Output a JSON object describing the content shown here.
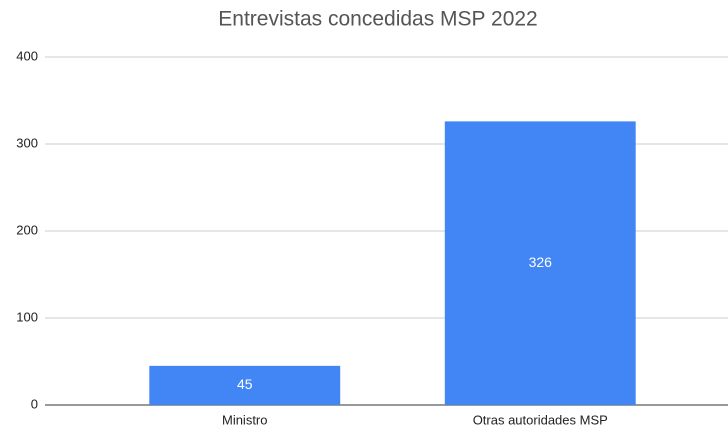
{
  "chart_data": {
    "type": "bar",
    "title": "Entrevistas concedidas MSP 2022",
    "categories": [
      "Ministro",
      "Otras autoridades MSP"
    ],
    "values": [
      45,
      326
    ],
    "color": "#4285f4",
    "ylim": [
      0,
      400
    ],
    "yticks": [
      0,
      100,
      200,
      300,
      400
    ],
    "grid": true,
    "data_labels": true
  }
}
